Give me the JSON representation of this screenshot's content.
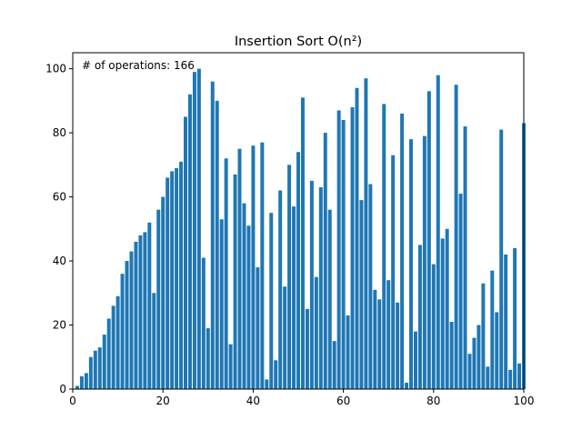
{
  "chart_data": {
    "type": "bar",
    "title": "Insertion Sort O(n²)",
    "annotation": "# of operations: 166",
    "xlabel": "",
    "ylabel": "",
    "xlim": [
      0,
      100
    ],
    "ylim": [
      0,
      105
    ],
    "xticks": [
      0,
      20,
      40,
      60,
      80,
      100
    ],
    "yticks": [
      0,
      20,
      40,
      60,
      80,
      100
    ],
    "grid": false,
    "bar_color": "#1f77b4",
    "x": [
      1,
      2,
      3,
      4,
      5,
      6,
      7,
      8,
      9,
      10,
      11,
      12,
      13,
      14,
      15,
      16,
      17,
      18,
      19,
      20,
      21,
      22,
      23,
      24,
      25,
      26,
      27,
      28,
      29,
      30,
      31,
      32,
      33,
      34,
      35,
      36,
      37,
      38,
      39,
      40,
      41,
      42,
      43,
      44,
      45,
      46,
      47,
      48,
      49,
      50,
      51,
      52,
      53,
      54,
      55,
      56,
      57,
      58,
      59,
      60,
      61,
      62,
      63,
      64,
      65,
      66,
      67,
      68,
      69,
      70,
      71,
      72,
      73,
      74,
      75,
      76,
      77,
      78,
      79,
      80,
      81,
      82,
      83,
      84,
      85,
      86,
      87,
      88,
      89,
      90,
      91,
      92,
      93,
      94,
      95,
      96,
      97,
      98,
      99,
      100
    ],
    "values": [
      1,
      4,
      5,
      10,
      12,
      13,
      17,
      22,
      26,
      29,
      36,
      40,
      43,
      46,
      48,
      49,
      52,
      30,
      56,
      60,
      66,
      68,
      69,
      71,
      85,
      92,
      99,
      100,
      41,
      19,
      96,
      90,
      53,
      72,
      14,
      67,
      75,
      58,
      51,
      76,
      38,
      77,
      3,
      55,
      9,
      62,
      32,
      70,
      57,
      74,
      91,
      25,
      65,
      35,
      63,
      80,
      56,
      15,
      87,
      84,
      23,
      88,
      94,
      59,
      97,
      64,
      31,
      28,
      89,
      34,
      73,
      27,
      86,
      2,
      78,
      18,
      45,
      79,
      93,
      39,
      98,
      47,
      50,
      21,
      95,
      61,
      82,
      11,
      16,
      20,
      33,
      7,
      37,
      24,
      81,
      42,
      6,
      44,
      8,
      83
    ]
  }
}
